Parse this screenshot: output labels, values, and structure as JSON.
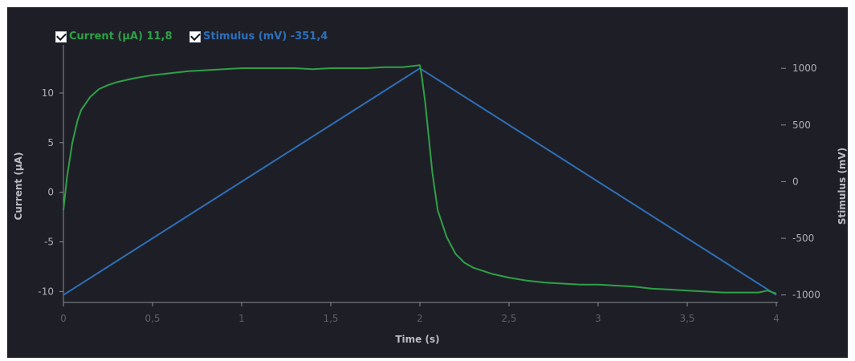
{
  "legend": {
    "current_label": "Current (µA) 11,8",
    "stimulus_label": "Stimulus (mV) -351,4"
  },
  "colors": {
    "background": "#1e1f26",
    "current": "#2fa047",
    "stimulus": "#2e6fb8",
    "axis": "#8a8d94",
    "text": "#b9bbc0"
  },
  "chart_data": {
    "type": "line",
    "xlabel": "Time (s)",
    "ylabel_left": "Current (µA)",
    "ylabel_right": "Stimulus (mV)",
    "xlim": [
      0,
      4
    ],
    "ylim_left": [
      -11.1,
      14.2
    ],
    "ylim_right": [
      -1066,
      1150
    ],
    "x_ticks": [
      "0",
      "0,5",
      "1",
      "1,5",
      "2",
      "2,5",
      "3",
      "3,5",
      "4"
    ],
    "y_left_ticks": [
      "10",
      "5",
      "0",
      "-5",
      "-10"
    ],
    "y_right_ticks": [
      "1000",
      "500",
      "0",
      "-500",
      "-1000"
    ],
    "grid": false,
    "series": [
      {
        "name": "Current (µA)",
        "axis": "left",
        "x": [
          0,
          0.02,
          0.05,
          0.08,
          0.1,
          0.15,
          0.2,
          0.25,
          0.3,
          0.4,
          0.5,
          0.6,
          0.7,
          0.8,
          0.9,
          1.0,
          1.1,
          1.2,
          1.3,
          1.4,
          1.5,
          1.6,
          1.7,
          1.8,
          1.9,
          2.0,
          2.01,
          2.03,
          2.05,
          2.07,
          2.1,
          2.15,
          2.2,
          2.25,
          2.3,
          2.4,
          2.5,
          2.6,
          2.7,
          2.8,
          2.9,
          3.0,
          3.1,
          3.2,
          3.3,
          3.4,
          3.5,
          3.6,
          3.7,
          3.8,
          3.9,
          3.95,
          4.0
        ],
        "values": [
          -1.8,
          1.5,
          5.0,
          7.3,
          8.3,
          9.6,
          10.4,
          10.8,
          11.1,
          11.5,
          11.8,
          12.0,
          12.2,
          12.3,
          12.4,
          12.5,
          12.5,
          12.5,
          12.5,
          12.4,
          12.5,
          12.5,
          12.5,
          12.6,
          12.6,
          12.8,
          11.8,
          9.0,
          5.5,
          2.0,
          -1.8,
          -4.5,
          -6.2,
          -7.1,
          -7.6,
          -8.2,
          -8.6,
          -8.9,
          -9.1,
          -9.2,
          -9.3,
          -9.3,
          -9.4,
          -9.5,
          -9.7,
          -9.8,
          -9.9,
          -10.0,
          -10.1,
          -10.1,
          -10.1,
          -9.9,
          -10.2
        ]
      },
      {
        "name": "Stimulus (mV)",
        "axis": "right",
        "x": [
          0,
          2,
          4
        ],
        "values": [
          -1000,
          1000,
          -1000
        ]
      }
    ]
  }
}
